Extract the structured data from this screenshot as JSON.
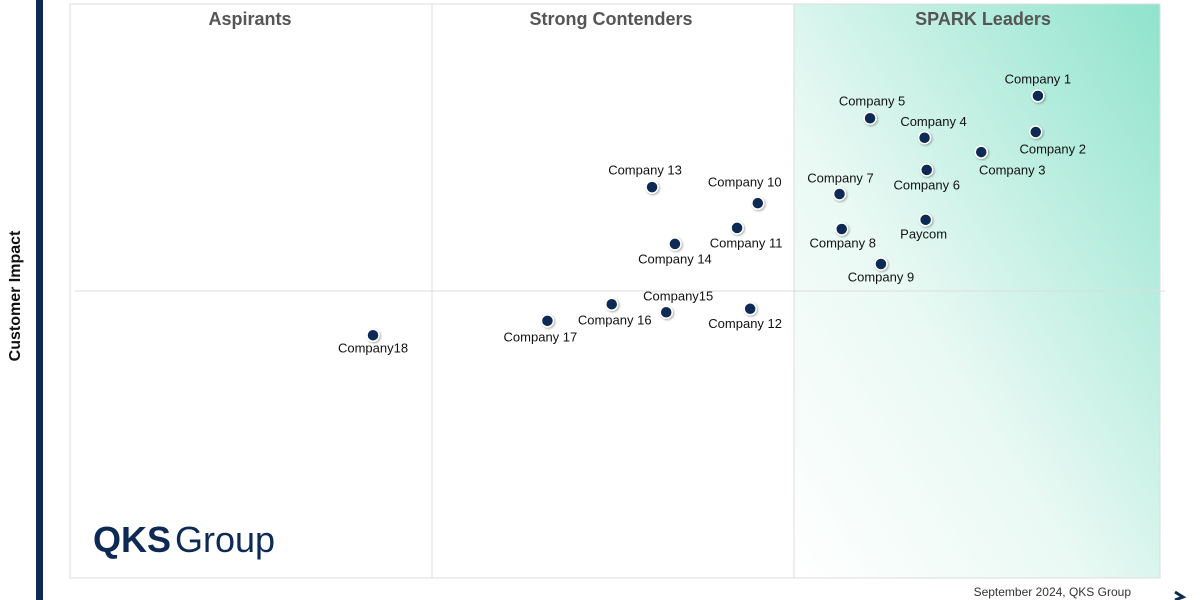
{
  "chart_data": {
    "type": "scatter",
    "quadrant_titles": [
      "Aspirants",
      "Strong Contenders",
      "SPARK Leaders"
    ],
    "ylabel": "Customer Impact",
    "footer": "September 2024, QKS Group",
    "logo": {
      "bold": "QKS",
      "light": "Group"
    },
    "xlim": [
      0,
      100
    ],
    "ylim": [
      0,
      100
    ],
    "color": "#0d2a55",
    "points": [
      "Company 1",
      "Company 2",
      "Company 3",
      "Company 4",
      "Company 5",
      "Company 6",
      "Company 7",
      "Company 8",
      "Company 9",
      "Paycom",
      "Company 10",
      "Company 11",
      "Company 12",
      "Company 13",
      "Company 14",
      "Company15",
      "Company 16",
      "Company 17",
      "Company18"
    ],
    "x": [
      88.8,
      88.6,
      83.6,
      78.4,
      73.4,
      78.6,
      70.6,
      70.8,
      74.4,
      78.5,
      63.1,
      61.2,
      62.4,
      53.4,
      55.5,
      54.7,
      49.7,
      43.8,
      27.8
    ],
    "y": [
      84.0,
      77.7,
      74.2,
      76.7,
      80.1,
      71.1,
      66.9,
      60.8,
      54.7,
      62.4,
      65.3,
      61.0,
      46.9,
      68.1,
      58.2,
      46.3,
      47.7,
      44.8,
      42.3
    ]
  }
}
